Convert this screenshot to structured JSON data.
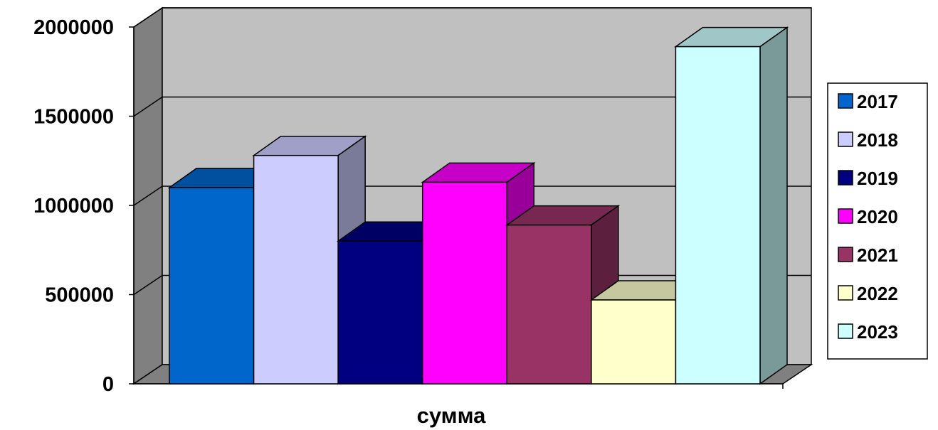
{
  "chart_data": {
    "type": "bar",
    "title": "",
    "xlabel": "",
    "ylabel": "",
    "categories": [
      "сумма"
    ],
    "series": [
      {
        "name": "2017",
        "values": [
          1100000
        ],
        "color": "#0066CC"
      },
      {
        "name": "2018",
        "values": [
          1280000
        ],
        "color": "#CCCCFF"
      },
      {
        "name": "2019",
        "values": [
          800000
        ],
        "color": "#000080"
      },
      {
        "name": "2020",
        "values": [
          1130000
        ],
        "color": "#FF00FF"
      },
      {
        "name": "2021",
        "values": [
          890000
        ],
        "color": "#993366"
      },
      {
        "name": "2022",
        "values": [
          470000
        ],
        "color": "#FFFFCC"
      },
      {
        "name": "2023",
        "values": [
          1890000
        ],
        "color": "#CCFFFF"
      }
    ],
    "ylim": [
      0,
      2000000
    ],
    "y_ticks": [
      "0",
      "500000",
      "1000000",
      "1500000",
      "2000000"
    ],
    "grid": true,
    "three_d": true,
    "legend_position": "right",
    "colors": {
      "wall": "#C0C0C0",
      "side_wall": "#808080",
      "floor": "#808080",
      "grid": "#000000"
    }
  }
}
